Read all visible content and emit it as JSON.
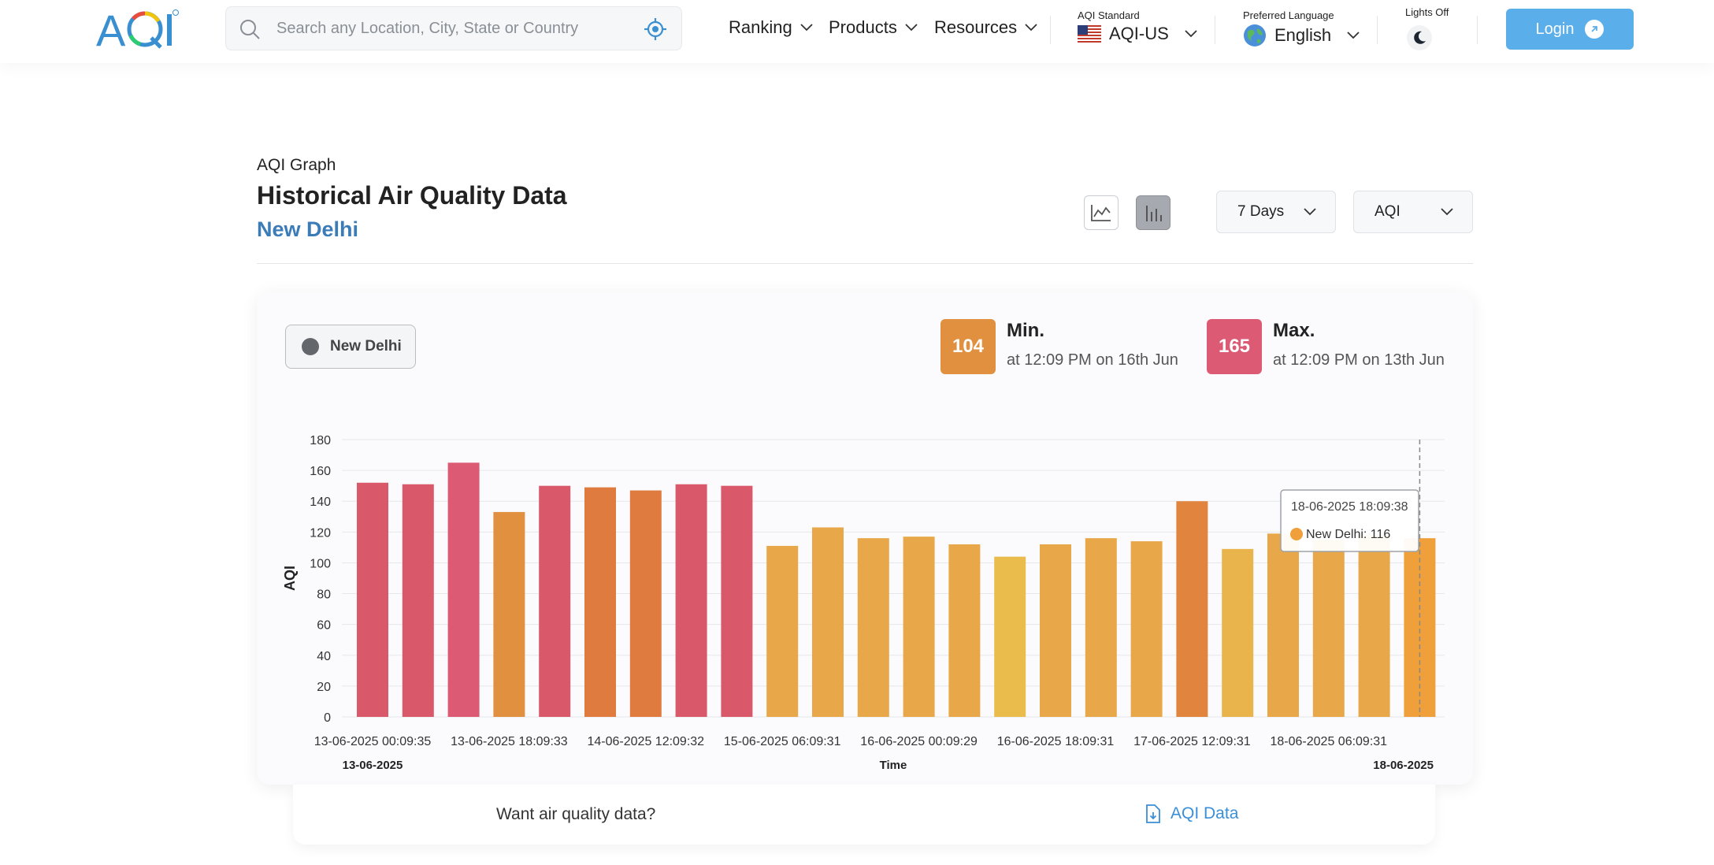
{
  "header": {
    "search_placeholder": "Search any Location, City, State or Country",
    "nav": [
      {
        "label": "Ranking"
      },
      {
        "label": "Products"
      },
      {
        "label": "Resources"
      }
    ],
    "aqi_standard_label": "AQI Standard",
    "aqi_standard_value": "AQI-US",
    "language_label": "Preferred Language",
    "language_value": "English",
    "lights_label": "Lights Off",
    "login_label": "Login"
  },
  "page": {
    "eyebrow": "AQI Graph",
    "title": "Historical Air Quality Data",
    "city": "New Delhi",
    "range_dropdown": "7 Days",
    "metric_dropdown": "AQI"
  },
  "card": {
    "legend_label": "New Delhi",
    "min": {
      "value": "104",
      "title": "Min.",
      "sub": "at 12:09 PM on 16th Jun",
      "color": "#e0903e"
    },
    "max": {
      "value": "165",
      "title": "Max.",
      "sub": "at 12:09 PM on 13th Jun",
      "color": "#dc5a74"
    }
  },
  "tooltip": {
    "time": "18-06-2025 18:09:38",
    "text": "New Delhi: 116"
  },
  "footer": {
    "prompt": "Want air quality data?",
    "link": "AQI Data"
  },
  "chart_data": {
    "type": "bar",
    "ylabel": "AQI",
    "xlabel": "Time",
    "ylim": [
      0,
      180
    ],
    "y_ticks": [
      0,
      20,
      40,
      60,
      80,
      100,
      120,
      140,
      160,
      180
    ],
    "x_tick_labels": [
      "13-06-2025 00:09:35",
      "13-06-2025 18:09:33",
      "14-06-2025 12:09:32",
      "15-06-2025 06:09:31",
      "16-06-2025 00:09:29",
      "16-06-2025 18:09:31",
      "17-06-2025 12:09:31",
      "18-06-2025 06:09:31"
    ],
    "x_tick_every": 3,
    "start_label": "13-06-2025",
    "end_label": "18-06-2025",
    "grid": true,
    "series": [
      {
        "name": "New Delhi",
        "values": [
          152,
          151,
          165,
          133,
          150,
          149,
          147,
          151,
          150,
          111,
          123,
          116,
          117,
          112,
          104,
          112,
          116,
          114,
          140,
          109,
          119,
          115,
          118,
          116
        ],
        "colors": [
          "#d9596a",
          "#d9596a",
          "#dc5a74",
          "#e0903e",
          "#d9596a",
          "#e07b3f",
          "#e07b3f",
          "#d9596a",
          "#d9596a",
          "#e8a748",
          "#e8a748",
          "#e8a748",
          "#e8a748",
          "#e8a748",
          "#e9bc4b",
          "#e8a748",
          "#e8a748",
          "#e8a748",
          "#e0843e",
          "#e9b44b",
          "#e8a748",
          "#e8a748",
          "#e8a748",
          "#f0a03a"
        ]
      }
    ]
  }
}
